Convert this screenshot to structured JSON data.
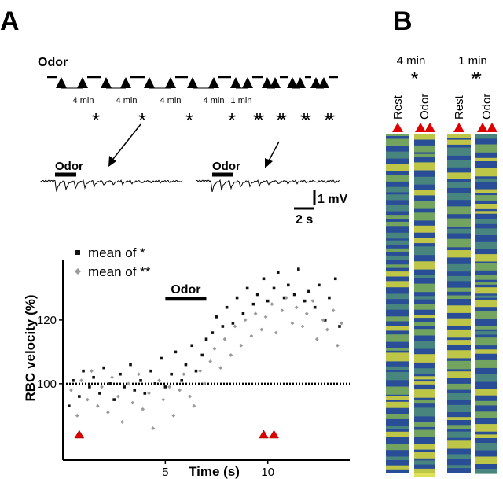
{
  "panel_a_label": "A",
  "schematic": {
    "odor": "Odor",
    "intervals": [
      "4 min",
      "4 min",
      "4 min",
      "4 min",
      "1 min"
    ],
    "asterisks": [
      "*",
      "*",
      "*",
      "*",
      "**",
      "**",
      "**",
      "**"
    ],
    "trace_labels": [
      "Odor",
      "Odor"
    ],
    "scale_v": "1 mV",
    "scale_t": "2 s"
  },
  "chart_data": {
    "type": "scatter",
    "xlabel": "Time (s)",
    "ylabel": "RBC velocity (%)",
    "xlim": [
      0,
      14
    ],
    "ylim": [
      76,
      139
    ],
    "xticks": [
      5,
      10
    ],
    "yticks": [
      100,
      120
    ],
    "reference_line": 100,
    "odor_bar": {
      "label": "Odor",
      "x": [
        5,
        7
      ],
      "y": 126.7
    },
    "stim_markers_x": [
      0.8,
      9.8,
      10.3
    ],
    "series": [
      {
        "name": "mean of *",
        "color": "#111111",
        "marker": "square",
        "x": [
          0.3,
          0.5,
          0.8,
          1.0,
          1.3,
          1.5,
          1.8,
          2.0,
          2.3,
          2.5,
          2.8,
          3.0,
          3.3,
          3.5,
          3.8,
          4.0,
          4.3,
          4.5,
          4.8,
          5.0,
          5.3,
          5.5,
          5.8,
          6.0,
          6.3,
          6.5,
          6.8,
          7.0,
          7.3,
          7.5,
          7.8,
          8.0,
          8.3,
          8.5,
          8.8,
          9.0,
          9.3,
          9.5,
          9.8,
          10.0,
          10.3,
          10.5,
          10.8,
          11.0,
          11.3,
          11.5,
          11.8,
          12.0,
          12.3,
          12.5,
          12.8,
          13.0,
          13.3,
          13.5
        ],
        "values": [
          93,
          101,
          96,
          104,
          99,
          102,
          97,
          105,
          100,
          95,
          103,
          99,
          106,
          98,
          101,
          97,
          104,
          100,
          108,
          99,
          103,
          110,
          101,
          106,
          112,
          104,
          109,
          114,
          116,
          121,
          118,
          124,
          119,
          127,
          122,
          130,
          125,
          128,
          133,
          126,
          130,
          135,
          127,
          131,
          128,
          136,
          126,
          129,
          124,
          131,
          120,
          127,
          133,
          118
        ]
      },
      {
        "name": "mean of **",
        "color": "#9a9a9a",
        "marker": "diamond",
        "x": [
          0.4,
          0.7,
          0.9,
          1.2,
          1.4,
          1.7,
          1.9,
          2.2,
          2.4,
          2.7,
          2.9,
          3.2,
          3.4,
          3.7,
          3.9,
          4.2,
          4.4,
          4.7,
          4.9,
          5.2,
          5.4,
          5.7,
          5.9,
          6.2,
          6.4,
          6.7,
          6.9,
          7.2,
          7.4,
          7.7,
          7.9,
          8.2,
          8.4,
          8.7,
          8.9,
          9.2,
          9.4,
          9.7,
          9.9,
          10.2,
          10.4,
          10.7,
          10.9,
          11.2,
          11.4,
          11.7,
          11.9,
          12.2,
          12.4,
          12.7,
          12.9,
          13.2,
          13.4,
          13.6
        ],
        "values": [
          98,
          90,
          101,
          95,
          104,
          93,
          99,
          91,
          102,
          96,
          88,
          100,
          94,
          103,
          92,
          97,
          86,
          101,
          95,
          99,
          90,
          98,
          103,
          96,
          93,
          104,
          100,
          107,
          111,
          105,
          114,
          109,
          118,
          112,
          120,
          115,
          122,
          117,
          121,
          125,
          116,
          123,
          127,
          119,
          124,
          118,
          122,
          126,
          114,
          120,
          117,
          123,
          112,
          119
        ]
      }
    ]
  },
  "panel_b": {
    "label": "B",
    "groups": [
      {
        "title": "4 min",
        "mark": "*",
        "lanes": [
          "Rest",
          "Odor"
        ]
      },
      {
        "title": "1 min",
        "mark": "**",
        "lanes": [
          "Rest",
          "Odor"
        ]
      }
    ]
  }
}
